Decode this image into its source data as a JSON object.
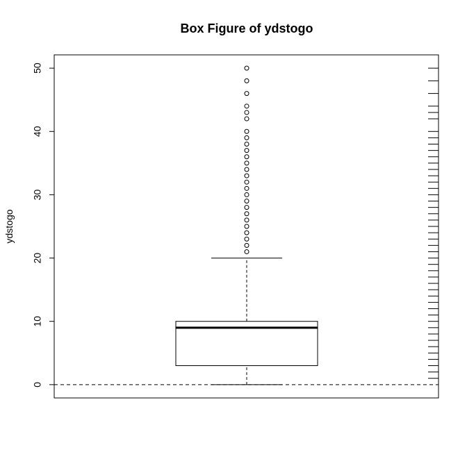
{
  "chart_data": {
    "type": "box",
    "title": "Box Figure of ydstogo",
    "ylabel": "ydstogo",
    "ylim": [
      -2.1,
      52.1
    ],
    "yticks": [
      0,
      10,
      20,
      30,
      40,
      50
    ],
    "box": {
      "lower_whisker": 0,
      "q1": 3,
      "median": 9,
      "q3": 10,
      "upper_whisker": 20
    },
    "outliers": [
      21,
      22,
      23,
      24,
      25,
      26,
      27,
      28,
      29,
      30,
      31,
      32,
      33,
      34,
      35,
      36,
      37,
      38,
      39,
      40,
      42,
      43,
      44,
      46,
      48,
      50
    ],
    "rug_values": [
      1,
      2,
      3,
      4,
      5,
      6,
      7,
      8,
      9,
      10,
      11,
      12,
      13,
      14,
      15,
      16,
      17,
      18,
      19,
      20,
      21,
      22,
      23,
      24,
      25,
      26,
      27,
      28,
      29,
      30,
      31,
      32,
      33,
      34,
      35,
      36,
      37,
      38,
      39,
      40,
      42,
      43,
      44,
      46,
      48,
      50
    ],
    "reference_line": 0
  }
}
